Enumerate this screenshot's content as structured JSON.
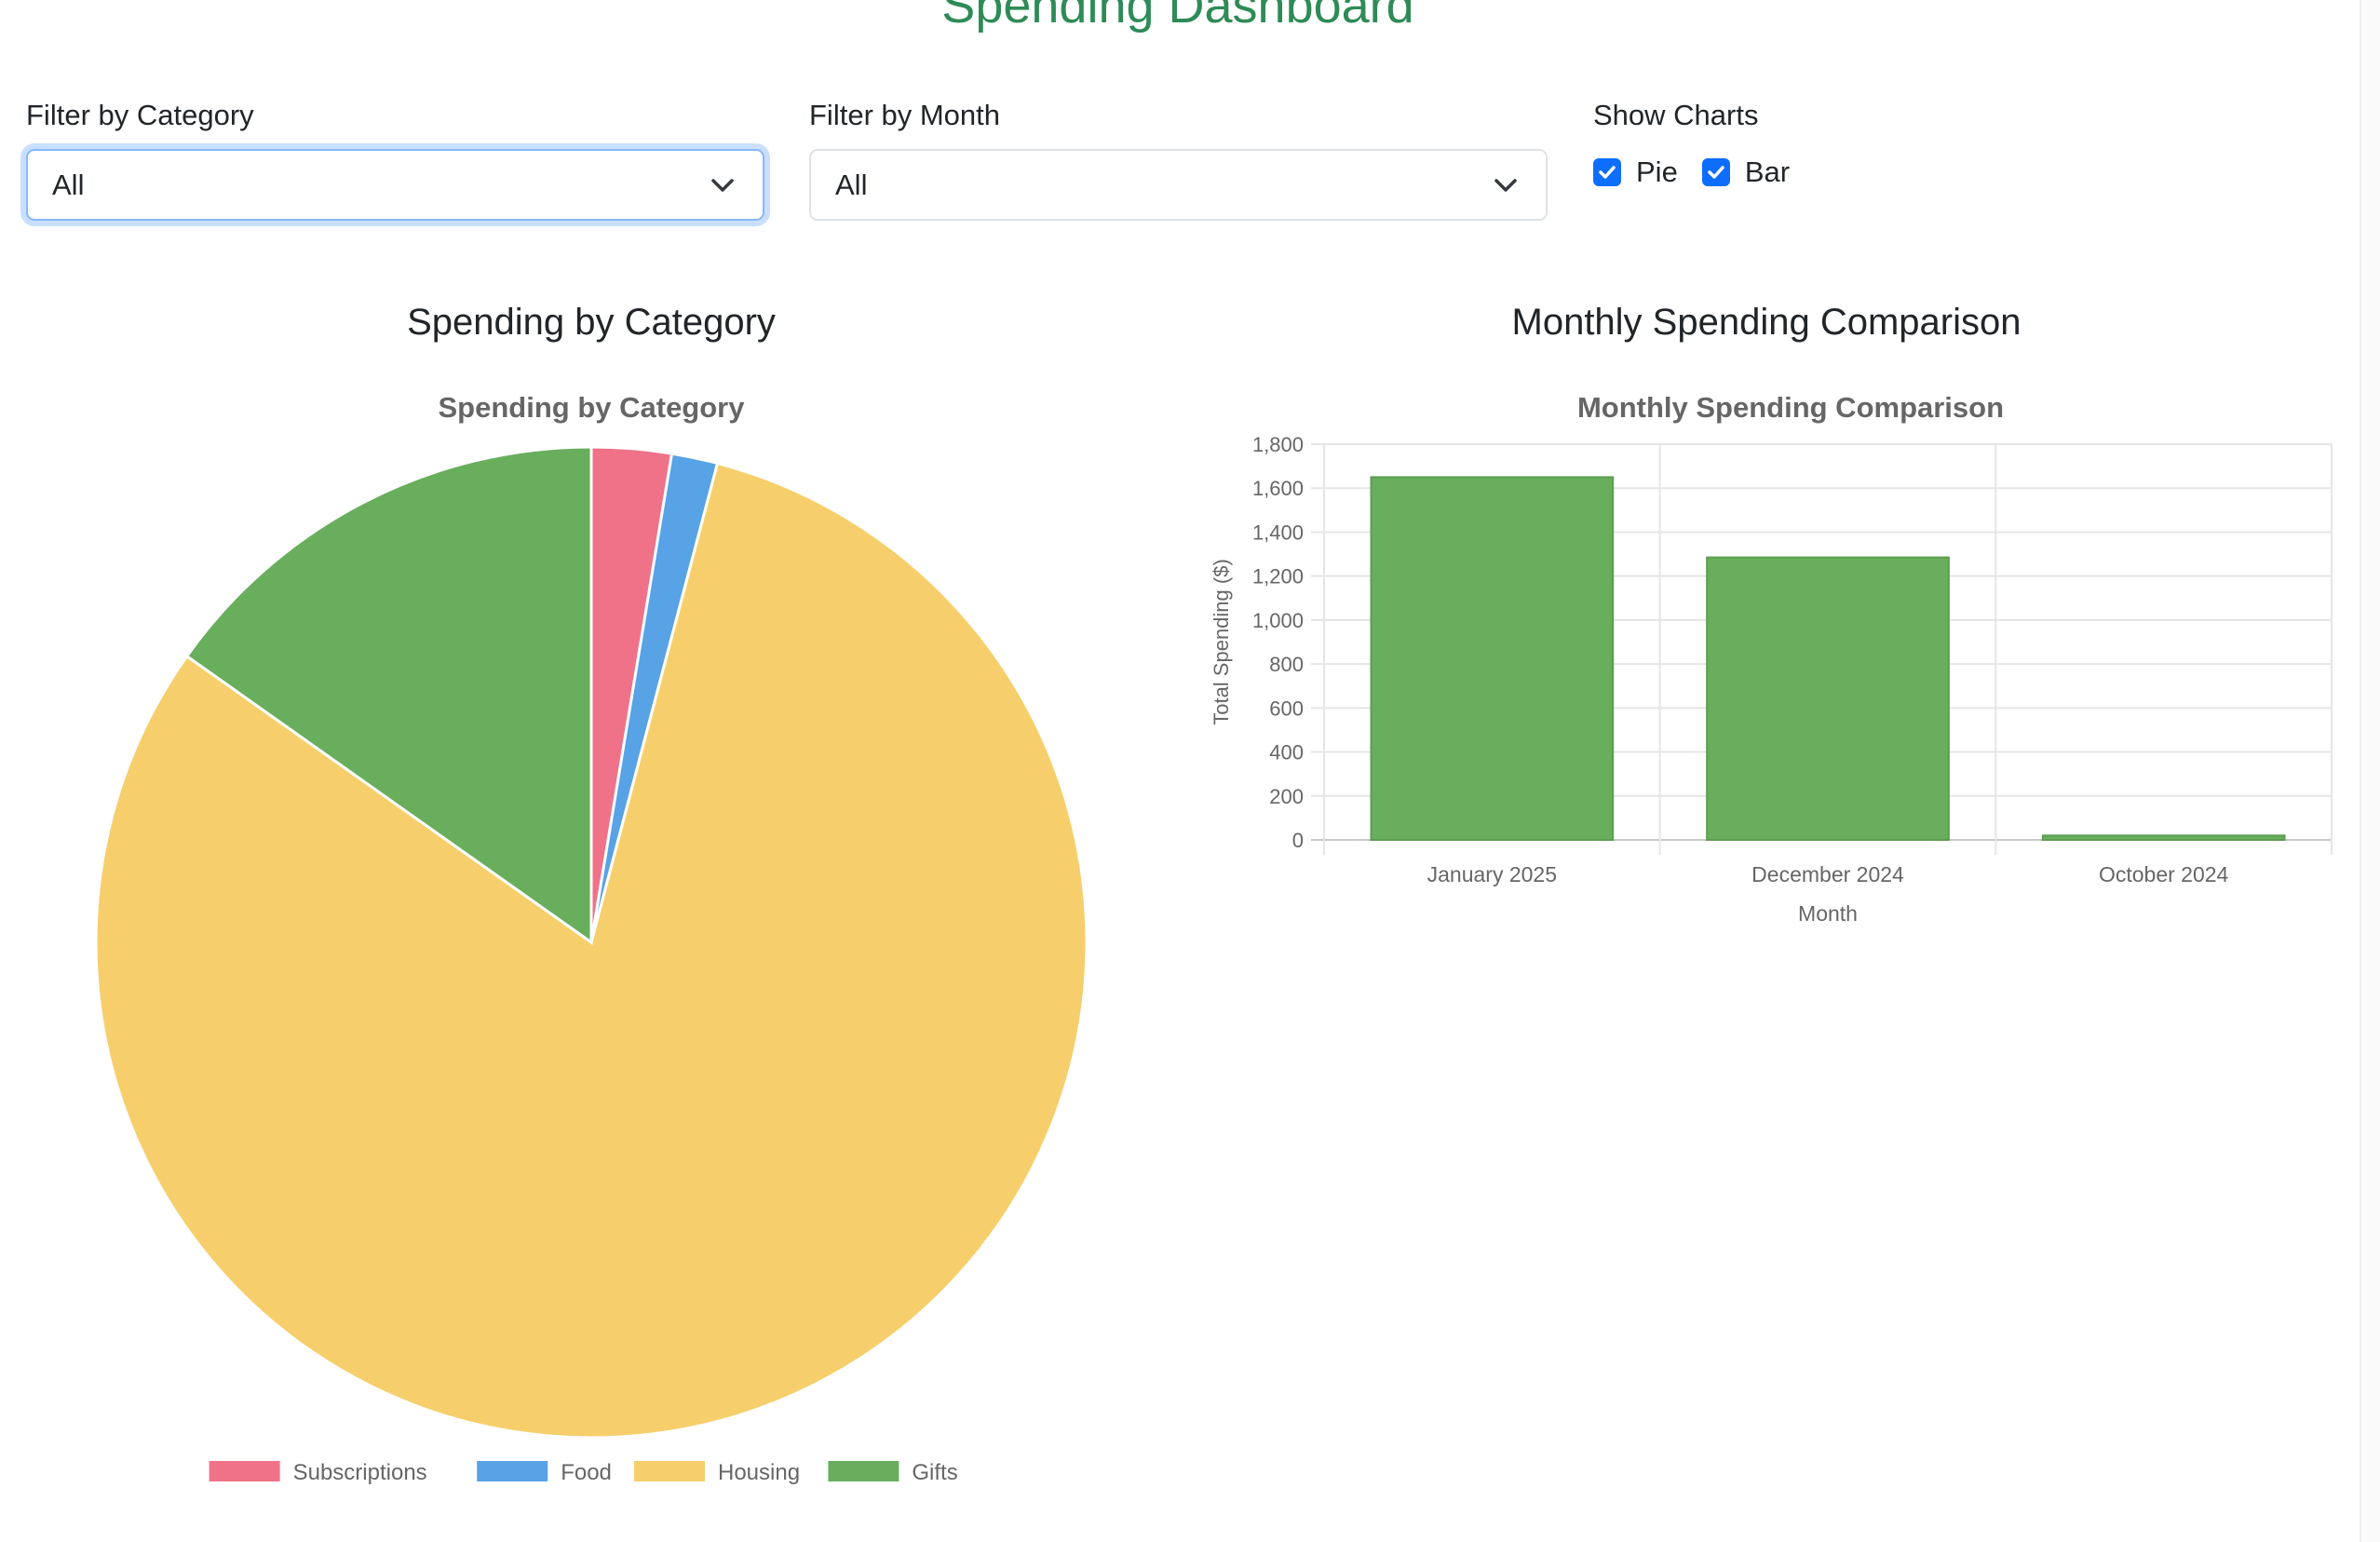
{
  "page": {
    "title": "Spending Dashboard"
  },
  "filters": {
    "category": {
      "label": "Filter by Category",
      "value": "All"
    },
    "month": {
      "label": "Filter by Month",
      "value": "All"
    },
    "show_charts": {
      "label": "Show Charts",
      "options": [
        {
          "label": "Pie",
          "checked": true
        },
        {
          "label": "Bar",
          "checked": true
        }
      ]
    }
  },
  "colors": {
    "title": "#2e8b57",
    "checkbox": "#0d6efd"
  },
  "pie_section": {
    "heading": "Spending by Category"
  },
  "bar_section": {
    "heading": "Monthly Spending Comparison"
  },
  "chart_data": [
    {
      "type": "pie",
      "title": "Spending by Category",
      "categories": [
        "Subscriptions",
        "Food",
        "Housing",
        "Gifts"
      ],
      "values": [
        2.6,
        1.5,
        80.7,
        15.2
      ],
      "colors": [
        "#f07288",
        "#58a2e6",
        "#f6cf6c",
        "#69ae5d"
      ],
      "legend_position": "bottom"
    },
    {
      "type": "bar",
      "title": "Monthly Spending Comparison",
      "categories": [
        "January 2025",
        "December 2024",
        "October 2024"
      ],
      "values": [
        1650,
        1285,
        20
      ],
      "xlabel": "Month",
      "ylabel": "Total Spending ($)",
      "ylim": [
        0,
        1800
      ],
      "yticks": [
        "0",
        "200",
        "400",
        "600",
        "800",
        "1,000",
        "1,200",
        "1,400",
        "1,600",
        "1,800"
      ],
      "color": "#69ae5d",
      "grid": true
    }
  ]
}
